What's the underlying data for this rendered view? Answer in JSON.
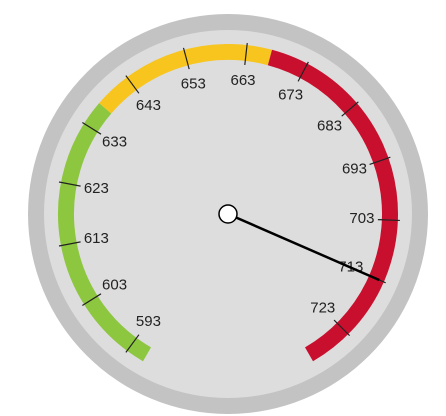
{
  "chart_data": {
    "type": "gauge",
    "value": 713,
    "ylim": [
      590,
      730
    ],
    "yticks": [
      593,
      603,
      613,
      623,
      633,
      643,
      653,
      663,
      673,
      683,
      693,
      703,
      713,
      723
    ],
    "bands": [
      {
        "from": 590,
        "to": 637,
        "color": "#8dc63f"
      },
      {
        "from": 637,
        "to": 667,
        "color": "#f7c51e"
      },
      {
        "from": 667,
        "to": 730,
        "color": "#c8102e"
      }
    ],
    "needle_color": "#000000"
  }
}
